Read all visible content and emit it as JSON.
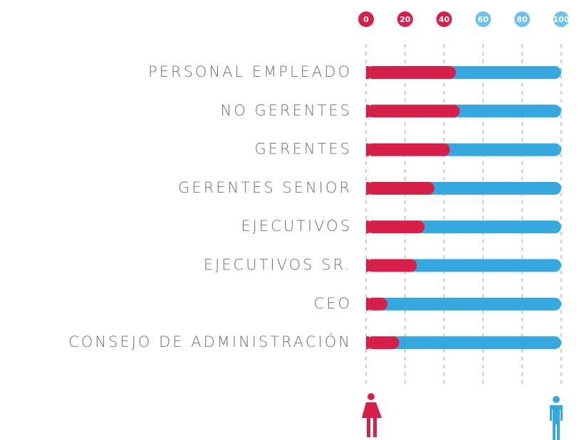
{
  "chart_data": {
    "type": "stacked-bar-horizontal",
    "categories": [
      "PERSONAL EMPLEADO",
      "NO GERENTES",
      "GERENTES",
      "GERENTES SENIOR",
      "EJECUTIVOS",
      "EJECUTIVOS SR.",
      "CEO",
      "CONSEJO DE ADMINISTRACIÓN"
    ],
    "series": [
      {
        "name": "Mujeres",
        "color": "#d6204a",
        "values": [
          46,
          48,
          43,
          35,
          30,
          26,
          11,
          17
        ]
      },
      {
        "name": "Hombres",
        "color": "#35a8e0",
        "values": [
          54,
          52,
          57,
          65,
          70,
          74,
          89,
          83
        ]
      }
    ],
    "xlim": [
      0,
      100
    ],
    "xticks": [
      0,
      20,
      40,
      60,
      80,
      100
    ],
    "xtick_colors": [
      "#d6204a",
      "#d6204a",
      "#d6204a",
      "#6cc3ea",
      "#6cc3ea",
      "#6cc3ea"
    ],
    "grid": true
  }
}
